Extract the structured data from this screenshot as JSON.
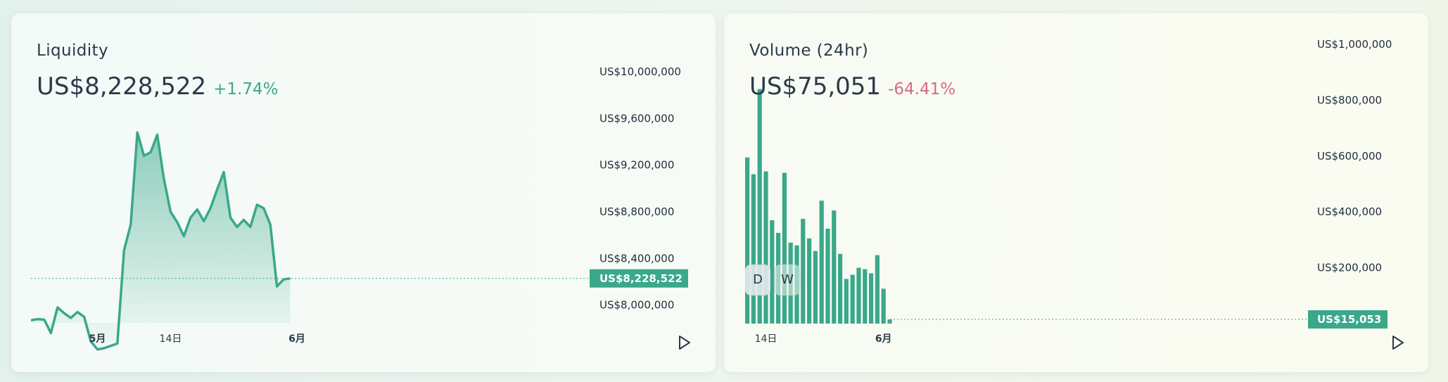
{
  "colors": {
    "accent": "#3aa88a",
    "up": "#3aa88a",
    "down": "#d56b80",
    "text": "#2b3a4a"
  },
  "liquidity": {
    "title": "Liquidity",
    "value": "US$8,228,522",
    "change": "+1.74%",
    "current_label": "US$8,228,522",
    "play_icon": "play-icon"
  },
  "volume": {
    "title": "Volume (24hr)",
    "value": "US$75,051",
    "change": "-64.41%",
    "current_label": "US$15,053",
    "toggle_d": "D",
    "toggle_w": "W",
    "play_icon": "play-icon"
  },
  "chart_data": [
    {
      "type": "area",
      "title": "Liquidity",
      "ylim": [
        7600000,
        10000000
      ],
      "y_ticks": [
        {
          "value": 10000000,
          "label": "US$10,000,000"
        },
        {
          "value": 9600000,
          "label": "US$9,600,000"
        },
        {
          "value": 9200000,
          "label": "US$9,200,000"
        },
        {
          "value": 8800000,
          "label": "US$8,800,000"
        },
        {
          "value": 8400000,
          "label": "US$8,400,000"
        },
        {
          "value": 8000000,
          "label": "US$8,000,000"
        }
      ],
      "x_ticks": [
        {
          "index": 10,
          "label": "5月",
          "bold": true
        },
        {
          "index": 21,
          "label": "14日",
          "bold": false
        },
        {
          "index": 40,
          "label": "6月",
          "bold": true
        }
      ],
      "current_value": 8228522,
      "values": [
        7870000,
        7880000,
        7875000,
        7760000,
        7980000,
        7930000,
        7890000,
        7940000,
        7900000,
        7690000,
        7620000,
        7630000,
        7650000,
        7670000,
        8470000,
        8690000,
        9480000,
        9280000,
        9310000,
        9460000,
        9080000,
        8800000,
        8710000,
        8590000,
        8750000,
        8820000,
        8720000,
        8830000,
        8990000,
        9140000,
        8750000,
        8670000,
        8730000,
        8670000,
        8860000,
        8830000,
        8690000,
        8160000,
        8220000,
        8228522
      ]
    },
    {
      "type": "bar",
      "title": "Volume (24hr)",
      "ylim": [
        0,
        1000000
      ],
      "y_ticks": [
        {
          "value": 1000000,
          "label": "US$1,000,000"
        },
        {
          "value": 800000,
          "label": "US$800,000"
        },
        {
          "value": 600000,
          "label": "US$600,000"
        },
        {
          "value": 400000,
          "label": "US$400,000"
        },
        {
          "value": 200000,
          "label": "US$200,000"
        }
      ],
      "x_ticks": [
        {
          "index": 3,
          "label": "14日",
          "bold": false
        },
        {
          "index": 22,
          "label": "6月",
          "bold": true
        }
      ],
      "current_value": 15053,
      "values": [
        595000,
        535000,
        840000,
        545000,
        370000,
        325000,
        540000,
        290000,
        280000,
        375000,
        305000,
        260000,
        440000,
        340000,
        405000,
        250000,
        160000,
        175000,
        200000,
        195000,
        180000,
        245000,
        125000,
        15053
      ]
    }
  ]
}
